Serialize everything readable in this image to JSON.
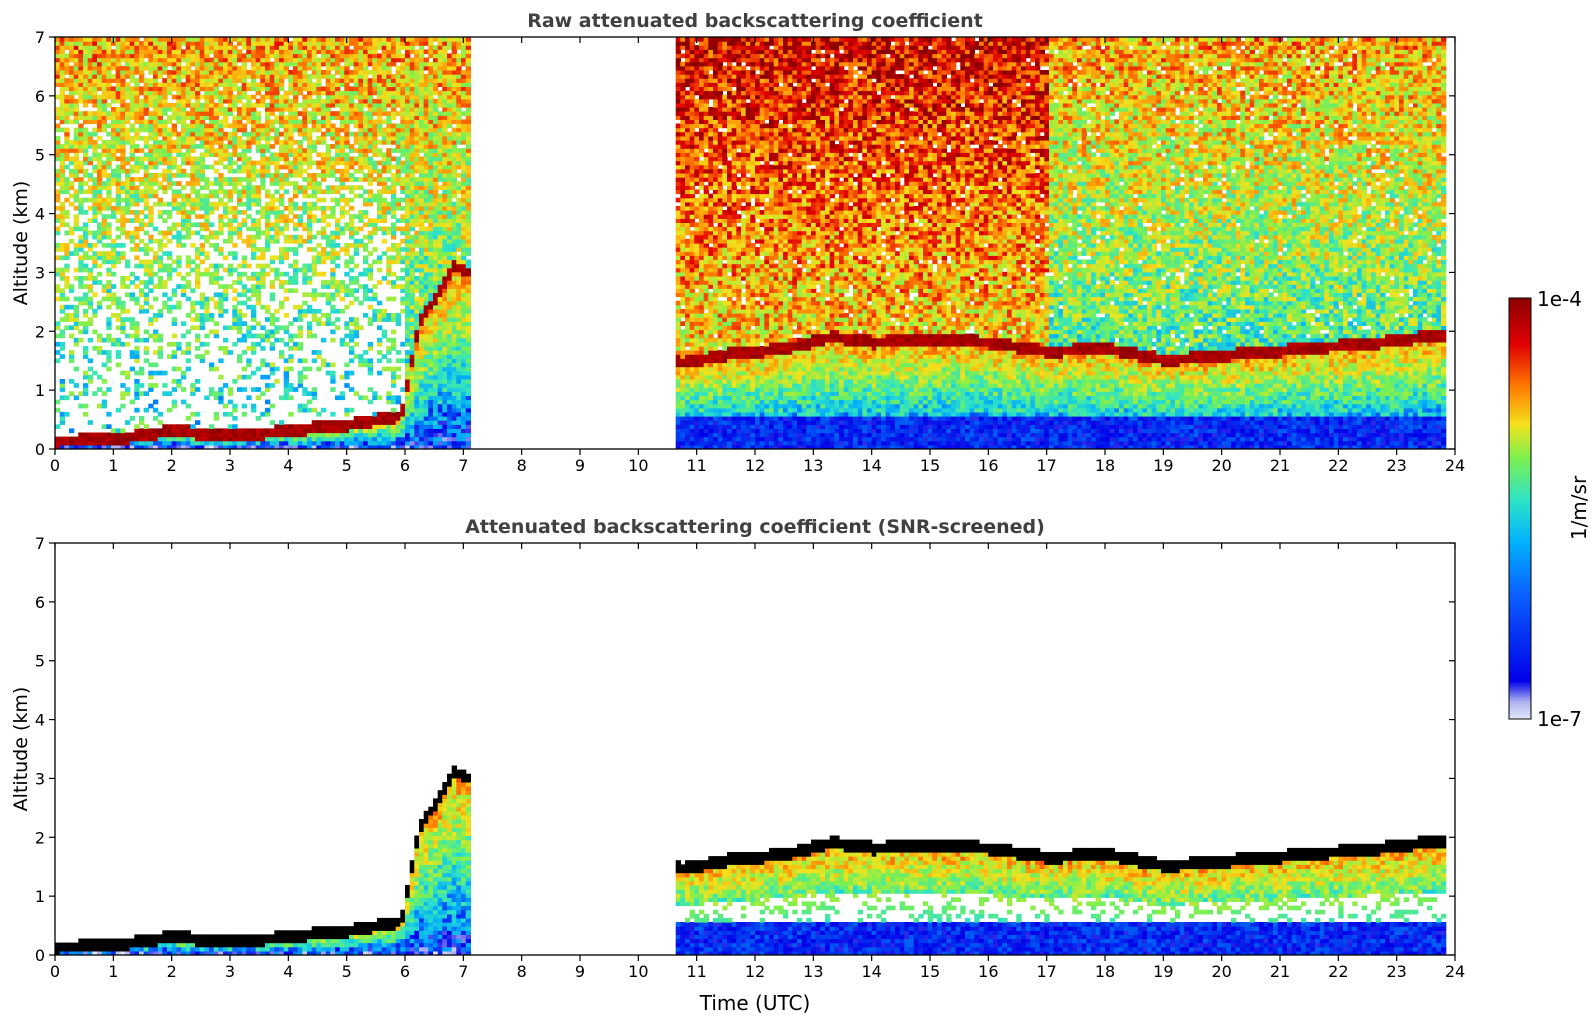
{
  "chart_data": [
    {
      "type": "heatmap",
      "title": "Raw attenuated backscattering coefficient",
      "xlabel": "",
      "ylabel": "Altitude (km)",
      "xlim": [
        0,
        24
      ],
      "ylim": [
        0,
        7
      ],
      "x_ticks": [
        0,
        1,
        2,
        3,
        4,
        5,
        6,
        7,
        8,
        9,
        10,
        11,
        12,
        13,
        14,
        15,
        16,
        17,
        18,
        19,
        20,
        21,
        22,
        23,
        24
      ],
      "y_ticks": [
        0,
        1,
        2,
        3,
        4,
        5,
        6,
        7
      ],
      "data_gaps_utc": [
        [
          7.1,
          10.6
        ],
        [
          23.8,
          24
        ]
      ],
      "boundary_layer_top_km": [
        {
          "x": 0.0,
          "y": 0.12
        },
        {
          "x": 1.0,
          "y": 0.15
        },
        {
          "x": 2.0,
          "y": 0.3
        },
        {
          "x": 3.0,
          "y": 0.2
        },
        {
          "x": 4.0,
          "y": 0.3
        },
        {
          "x": 5.0,
          "y": 0.4
        },
        {
          "x": 5.9,
          "y": 0.55
        },
        {
          "x": 6.2,
          "y": 2.1
        },
        {
          "x": 6.8,
          "y": 3.1
        },
        {
          "x": 10.7,
          "y": 1.45
        },
        {
          "x": 11.5,
          "y": 1.6
        },
        {
          "x": 12.5,
          "y": 1.7
        },
        {
          "x": 13.3,
          "y": 1.9
        },
        {
          "x": 14.0,
          "y": 1.8
        },
        {
          "x": 15.0,
          "y": 1.85
        },
        {
          "x": 16.0,
          "y": 1.8
        },
        {
          "x": 17.0,
          "y": 1.65
        },
        {
          "x": 18.0,
          "y": 1.7
        },
        {
          "x": 19.0,
          "y": 1.5
        },
        {
          "x": 22.7,
          "y": 1.8
        },
        {
          "x": 23.5,
          "y": 1.9
        }
      ]
    },
    {
      "type": "heatmap",
      "title": "Attenuated backscattering coefficient (SNR-screened)",
      "xlabel": "Time (UTC)",
      "ylabel": "Altitude (km)",
      "xlim": [
        0,
        24
      ],
      "ylim": [
        0,
        7
      ],
      "x_ticks": [
        0,
        1,
        2,
        3,
        4,
        5,
        6,
        7,
        8,
        9,
        10,
        11,
        12,
        13,
        14,
        15,
        16,
        17,
        18,
        19,
        20,
        21,
        22,
        23,
        24
      ],
      "y_ticks": [
        0,
        1,
        2,
        3,
        4,
        5,
        6,
        7
      ],
      "data_gaps_utc": [
        [
          7.1,
          10.6
        ],
        [
          23.8,
          24
        ]
      ],
      "boundary_layer_top_km": [
        {
          "x": 0.0,
          "y": 0.12
        },
        {
          "x": 1.0,
          "y": 0.15
        },
        {
          "x": 2.0,
          "y": 0.3
        },
        {
          "x": 3.0,
          "y": 0.2
        },
        {
          "x": 4.0,
          "y": 0.3
        },
        {
          "x": 5.0,
          "y": 0.4
        },
        {
          "x": 5.9,
          "y": 0.55
        },
        {
          "x": 6.2,
          "y": 2.1
        },
        {
          "x": 6.8,
          "y": 3.1
        },
        {
          "x": 10.7,
          "y": 1.45
        },
        {
          "x": 11.5,
          "y": 1.6
        },
        {
          "x": 12.5,
          "y": 1.7
        },
        {
          "x": 13.3,
          "y": 1.9
        },
        {
          "x": 14.0,
          "y": 1.8
        },
        {
          "x": 15.0,
          "y": 1.85
        },
        {
          "x": 16.0,
          "y": 1.8
        },
        {
          "x": 17.0,
          "y": 1.65
        },
        {
          "x": 18.0,
          "y": 1.7
        },
        {
          "x": 19.0,
          "y": 1.5
        },
        {
          "x": 22.7,
          "y": 1.8
        },
        {
          "x": 23.5,
          "y": 1.9
        }
      ]
    }
  ],
  "colorbar": {
    "label": "1/m/sr",
    "max_label": "1e-4",
    "min_label": "1e-7",
    "scale": "log",
    "colormap": [
      "#e4e6f6",
      "#0000e8",
      "#00a6ff",
      "#2de3c7",
      "#7df04f",
      "#f4e21c",
      "#ff7a00",
      "#e00000",
      "#8b0000"
    ]
  }
}
